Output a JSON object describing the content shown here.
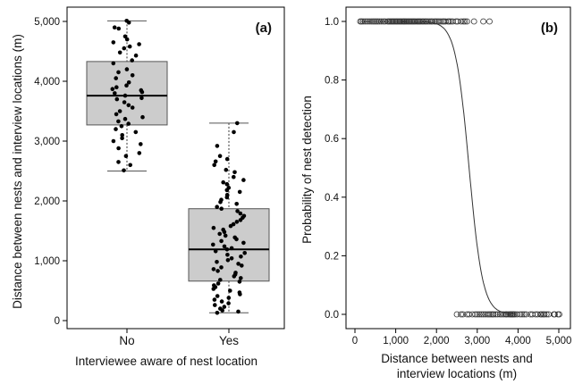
{
  "chart_data": [
    {
      "type": "box",
      "panel_label": "(a)",
      "xlabel": "Interviewee aware of nest location",
      "ylabel": "Distance between nests and interview locations (m)",
      "categories": [
        "No",
        "Yes"
      ],
      "ylim": [
        0,
        5000
      ],
      "yticks": [
        0,
        1000,
        2000,
        3000,
        4000,
        5000
      ],
      "ytick_labels": [
        "0",
        "1,000",
        "2,000",
        "3,000",
        "4,000",
        "5,000"
      ],
      "grid": false,
      "box_color": "#cccccc",
      "boxes": [
        {
          "category": "No",
          "min": 2500,
          "q1": 3270,
          "median": 3760,
          "q3": 4330,
          "max": 5010
        },
        {
          "category": "Yes",
          "min": 130,
          "q1": 660,
          "median": 1190,
          "q3": 1870,
          "max": 3300
        }
      ],
      "points": [
        {
          "category": "No",
          "values": [
            5010,
            4980,
            4900,
            4880,
            4750,
            4700,
            4650,
            4620,
            4580,
            4550,
            4480,
            4430,
            4350,
            4300,
            4200,
            4150,
            4100,
            4050,
            3980,
            3930,
            3900,
            3870,
            3850,
            3820,
            3800,
            3760,
            3720,
            3700,
            3650,
            3600,
            3560,
            3500,
            3450,
            3400,
            3370,
            3330,
            3290,
            3250,
            3200,
            3150,
            3100,
            3050,
            3000,
            2950,
            2880,
            2800,
            2750,
            2650,
            2600,
            2510
          ]
        },
        {
          "category": "Yes",
          "values": [
            3300,
            3150,
            2920,
            2750,
            2700,
            2660,
            2600,
            2520,
            2480,
            2400,
            2350,
            2310,
            2280,
            2220,
            2180,
            2150,
            2100,
            2060,
            2020,
            1980,
            1950,
            1900,
            1870,
            1830,
            1790,
            1750,
            1720,
            1680,
            1650,
            1610,
            1580,
            1550,
            1520,
            1480,
            1450,
            1420,
            1390,
            1360,
            1330,
            1300,
            1270,
            1240,
            1210,
            1190,
            1160,
            1130,
            1100,
            1070,
            1040,
            1010,
            980,
            950,
            920,
            890,
            860,
            830,
            800,
            770,
            740,
            710,
            680,
            650,
            620,
            590,
            560,
            530,
            500,
            470,
            440,
            410,
            380,
            350,
            320,
            290,
            260,
            230,
            200,
            170,
            150,
            130
          ]
        }
      ]
    },
    {
      "type": "scatter",
      "panel_label": "(b)",
      "xlabel": "Distance between nests and interview locations (m)",
      "ylabel": "Probability of nest detection",
      "xlim": [
        0,
        5000
      ],
      "ylim": [
        0,
        1
      ],
      "xticks": [
        0,
        1000,
        2000,
        3000,
        4000,
        5000
      ],
      "xtick_labels": [
        "0",
        "1,000",
        "2,000",
        "3,000",
        "4,000",
        "5,000"
      ],
      "yticks": [
        0,
        0.2,
        0.4,
        0.6,
        0.8,
        1
      ],
      "ytick_labels": [
        "0.0",
        "0.2",
        "0.4",
        "0.6",
        "0.8",
        "1.0"
      ],
      "grid": false,
      "series": [
        {
          "marker": "open-circle",
          "y": 1,
          "x": [
            130,
            160,
            200,
            250,
            300,
            350,
            400,
            440,
            480,
            520,
            560,
            600,
            650,
            700,
            740,
            800,
            830,
            860,
            890,
            920,
            950,
            980,
            1010,
            1040,
            1070,
            1100,
            1130,
            1160,
            1190,
            1210,
            1240,
            1270,
            1300,
            1330,
            1360,
            1390,
            1420,
            1450,
            1480,
            1520,
            1550,
            1580,
            1610,
            1650,
            1680,
            1720,
            1750,
            1790,
            1830,
            1870,
            1900,
            1950,
            1980,
            2020,
            2060,
            2100,
            2150,
            2180,
            2220,
            2280,
            2310,
            2350,
            2400,
            2480,
            2520,
            2600,
            2660,
            2700,
            2750,
            2920,
            3150,
            3300
          ]
        },
        {
          "marker": "open-circle",
          "y": 0,
          "x": [
            2500,
            2600,
            2650,
            2750,
            2800,
            2880,
            2950,
            3000,
            3050,
            3100,
            3150,
            3200,
            3250,
            3290,
            3330,
            3370,
            3400,
            3450,
            3500,
            3560,
            3600,
            3650,
            3700,
            3720,
            3760,
            3800,
            3820,
            3850,
            3870,
            3900,
            3930,
            3980,
            4050,
            4100,
            4150,
            4200,
            4300,
            4350,
            4430,
            4480,
            4550,
            4580,
            4620,
            4650,
            4700,
            4750,
            4880,
            4900,
            4980,
            5010
          ]
        },
        {
          "type": "line",
          "fit": "logistic",
          "midpoint": 2800,
          "steepness": 0.006
        }
      ]
    }
  ]
}
